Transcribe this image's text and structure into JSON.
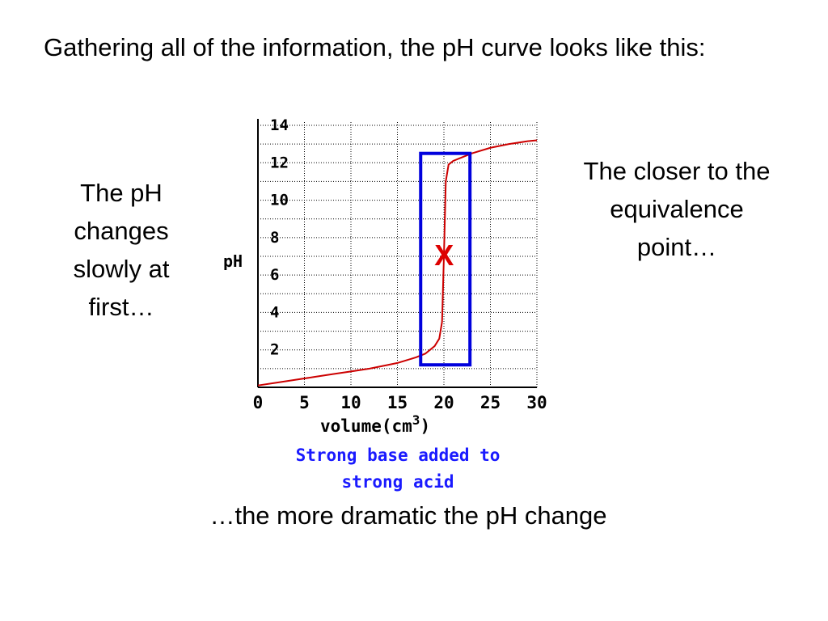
{
  "slide": {
    "heading": "Gathering all of the information, the pH curve looks like this:",
    "note_left": "The pH changes slowly at first…",
    "note_right": "The closer to the equivalence point…",
    "note_bottom": "…the more dramatic the pH change"
  },
  "chart_data": {
    "type": "line",
    "title": "",
    "ylabel": "pH",
    "xlabel": "volume(cm",
    "xlabel_superscript": "3",
    "xlabel_suffix": ")",
    "caption_lines": [
      "Strong base added to",
      "strong acid"
    ],
    "xlim": [
      0,
      30
    ],
    "ylim": [
      0,
      14
    ],
    "xticks": [
      0,
      5,
      10,
      15,
      20,
      25,
      30
    ],
    "yticks": [
      2,
      4,
      6,
      8,
      10,
      12,
      14
    ],
    "grid": true,
    "series": [
      {
        "color": "#cc0000",
        "x": [
          0,
          2,
          4,
          6,
          8,
          10,
          12,
          14,
          15,
          16,
          17,
          18,
          19,
          19.5,
          19.8,
          20,
          20.2,
          20.5,
          21,
          22,
          23,
          25,
          27,
          29,
          30
        ],
        "y": [
          0.1,
          0.25,
          0.4,
          0.55,
          0.7,
          0.85,
          1.0,
          1.2,
          1.3,
          1.45,
          1.6,
          1.8,
          2.2,
          2.6,
          3.5,
          7,
          11.0,
          11.9,
          12.1,
          12.3,
          12.5,
          12.8,
          13.0,
          13.15,
          13.2
        ]
      }
    ],
    "highlight_box": {
      "x_range": [
        17.5,
        22.8
      ],
      "y_range": [
        1.2,
        12.5
      ],
      "color": "#0000dd"
    },
    "marker": {
      "label": "X",
      "x": 19.5,
      "y": 7,
      "color": "#dd0000"
    },
    "caption_color": "#1a1aff",
    "line_color": "#cc0000"
  }
}
